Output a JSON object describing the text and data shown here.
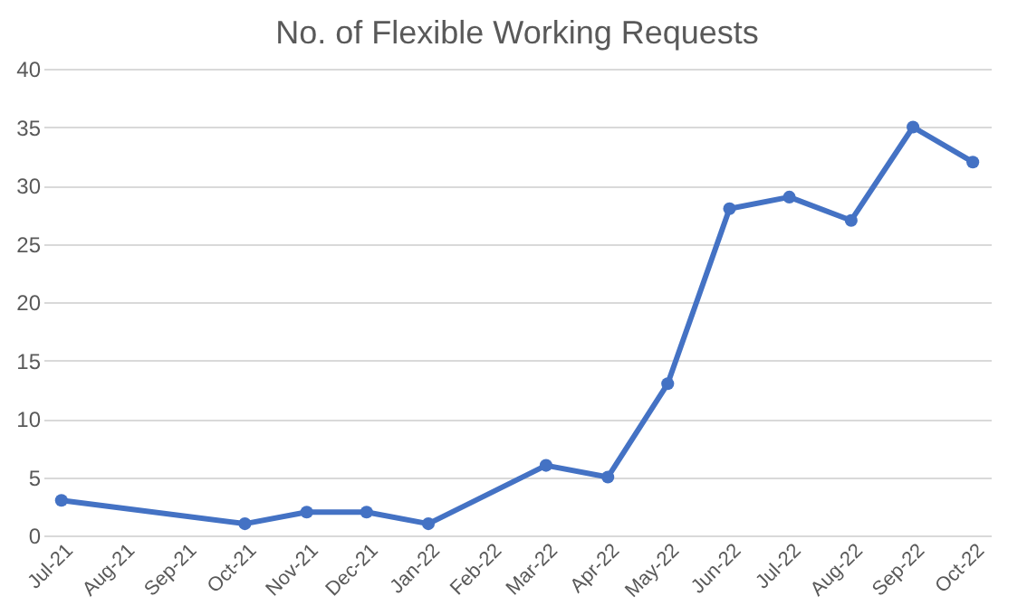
{
  "chart_data": {
    "type": "line",
    "title": "No. of Flexible Working Requests",
    "x": [
      "2021-07",
      "2021-10",
      "2021-11",
      "2021-12",
      "2022-01",
      "2022-03",
      "2022-04",
      "2022-05",
      "2022-06",
      "2022-07",
      "2022-08",
      "2022-09",
      "2022-10"
    ],
    "series": [
      {
        "color": "#4472c4",
        "values": [
          3,
          1,
          2,
          2,
          1,
          6,
          5,
          13,
          28,
          29,
          27,
          35,
          32
        ]
      }
    ],
    "xlim": [
      "2021-06-22",
      "2022-10-10"
    ],
    "xticks": [
      {
        "value": "2021-07",
        "label": "Jul-21"
      },
      {
        "value": "2021-08",
        "label": "Aug-21"
      },
      {
        "value": "2021-09",
        "label": "Sep-21"
      },
      {
        "value": "2021-10",
        "label": "Oct-21"
      },
      {
        "value": "2021-11",
        "label": "Nov-21"
      },
      {
        "value": "2021-12",
        "label": "Dec-21"
      },
      {
        "value": "2022-01",
        "label": "Jan-22"
      },
      {
        "value": "2022-02",
        "label": "Feb-22"
      },
      {
        "value": "2022-03",
        "label": "Mar-22"
      },
      {
        "value": "2022-04",
        "label": "Apr-22"
      },
      {
        "value": "2022-05",
        "label": "May-22"
      },
      {
        "value": "2022-06",
        "label": "Jun-22"
      },
      {
        "value": "2022-07",
        "label": "Jul-22"
      },
      {
        "value": "2022-08",
        "label": "Aug-22"
      },
      {
        "value": "2022-09",
        "label": "Sep-22"
      },
      {
        "value": "2022-10",
        "label": "Oct-22"
      }
    ],
    "ylim": [
      0,
      40
    ],
    "yticks": [
      0,
      5,
      10,
      15,
      20,
      25,
      30,
      35,
      40
    ],
    "grid": "y",
    "legend": false,
    "marker": "circle",
    "line_style": "solid"
  }
}
